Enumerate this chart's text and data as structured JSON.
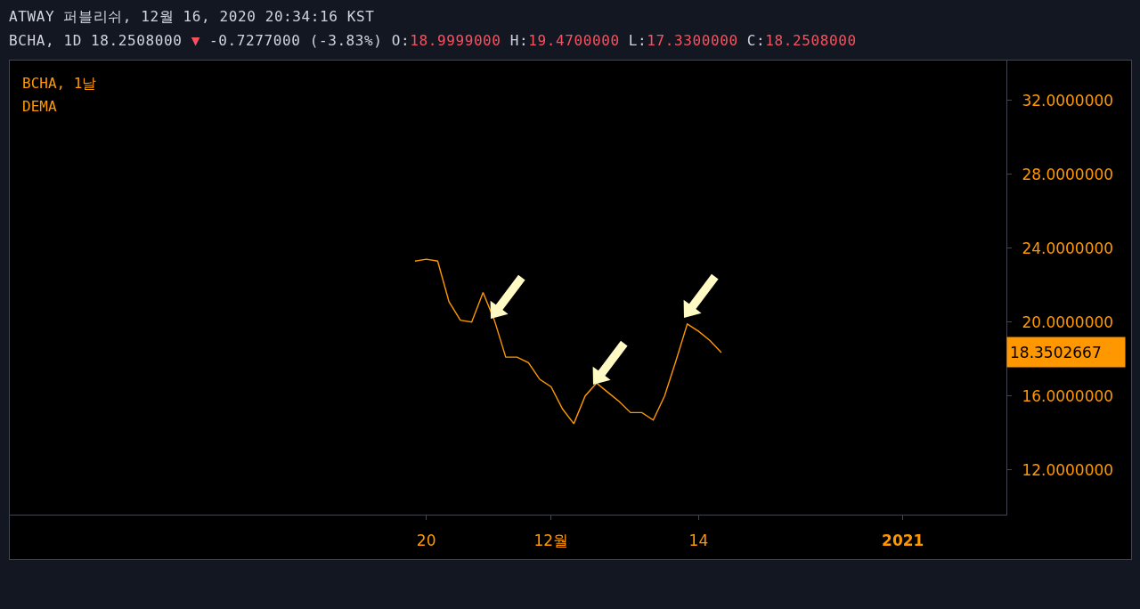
{
  "chart_data": {
    "type": "line",
    "title": "ATWAY 퍼블리쉬, 12월 16, 2020 20:34:16 KST",
    "subtitle": "BCHA, 1D 18.2508000 ▼ -0.7277000 (-3.83%) O:18.9999000 H:19.4700000 L:17.3300000 C:18.2508000",
    "legend_title": "BCHA, 1날",
    "legend": "top left",
    "line_style": "solid",
    "x": [
      "2020-11-19",
      "2020-11-20",
      "2020-11-21",
      "2020-11-22",
      "2020-11-23",
      "2020-11-24",
      "2020-11-25",
      "2020-11-26",
      "2020-11-27",
      "2020-11-28",
      "2020-11-29",
      "2020-11-30",
      "2020-12-01",
      "2020-12-02",
      "2020-12-03",
      "2020-12-04",
      "2020-12-05",
      "2020-12-06",
      "2020-12-07",
      "2020-12-08",
      "2020-12-09",
      "2020-12-10",
      "2020-12-11",
      "2020-12-12",
      "2020-12-13",
      "2020-12-14",
      "2020-12-15",
      "2020-12-16"
    ],
    "series": [
      {
        "name": "DEMA",
        "color": "#ff9800",
        "values": [
          23.3,
          23.4,
          23.3,
          21.1,
          20.1,
          20.0,
          21.6,
          20.1,
          18.1,
          18.1,
          17.8,
          16.9,
          16.5,
          15.3,
          14.5,
          16.0,
          16.7,
          16.2,
          15.7,
          15.1,
          15.1,
          14.7,
          16.0,
          17.9,
          19.9,
          19.5,
          19.0,
          18.35
        ]
      }
    ],
    "xlim": [
      "2020-10-14T07:00",
      "2021-01-10T03:00"
    ],
    "xticks": [
      {
        "value": "2020-11-20",
        "label": "20"
      },
      {
        "value": "2020-12-01",
        "label": "12월"
      },
      {
        "value": "2020-12-14",
        "label": "14"
      },
      {
        "value": "2021-01-01",
        "label": "2021"
      }
    ],
    "ylim": [
      9.58,
      34.15
    ],
    "yticks": [
      {
        "value": 12,
        "label": "12.0000000"
      },
      {
        "value": 16,
        "label": "16.0000000"
      },
      {
        "value": 20,
        "label": "20.0000000"
      },
      {
        "value": 24,
        "label": "24.0000000"
      },
      {
        "value": 28,
        "label": "28.0000000"
      },
      {
        "value": 32,
        "label": "32.0000000"
      }
    ],
    "annotations": [
      "18.3502667"
    ]
  }
}
